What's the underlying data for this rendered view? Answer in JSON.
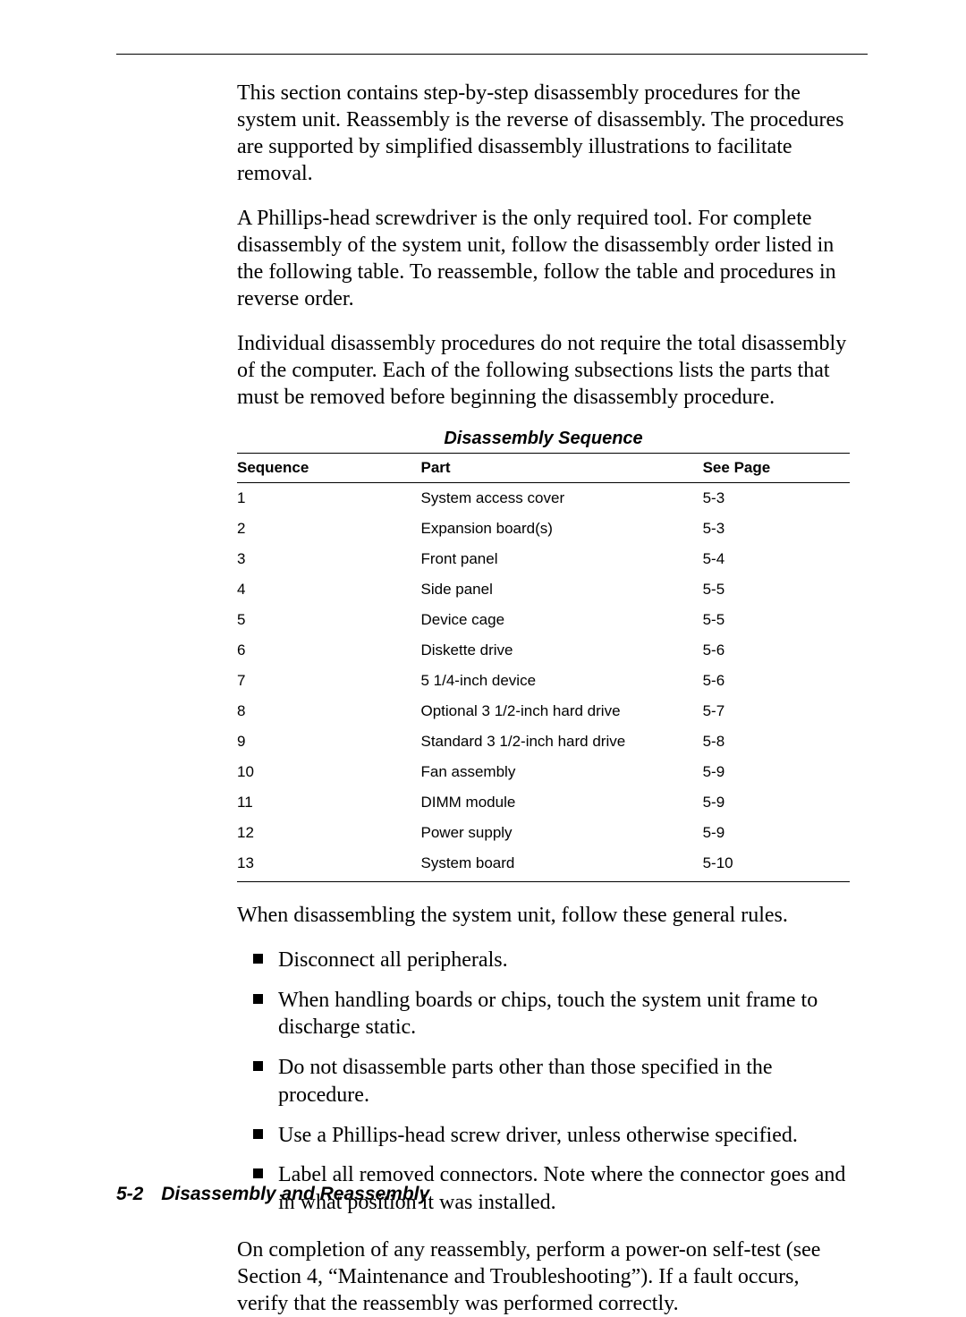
{
  "paragraphs": {
    "p1": "This section contains step-by-step disassembly procedures for the system unit. Reassembly is the reverse of disassembly. The procedures are supported by simplified disassembly illustrations to facilitate removal.",
    "p2": "A Phillips-head screwdriver is the only required tool. For complete disassembly of the system unit, follow the disassembly order listed in the following table. To reassemble, follow the table and procedures in reverse order.",
    "p3": "Individual disassembly procedures do not require the total disassembly of the computer. Each of the following subsections lists the parts that must be removed before beginning the disassembly procedure.",
    "p4": "When disassembling the system unit, follow these general rules.",
    "p5": "On completion of any reassembly, perform a power-on self-test (see Section 4, “Maintenance and Troubleshooting”). If a fault occurs, verify that the reassembly was performed correctly."
  },
  "table": {
    "title": "Disassembly Sequence",
    "headers": {
      "seq": "Sequence",
      "part": "Part",
      "page": "See Page"
    },
    "rows": [
      {
        "seq": "1",
        "part": "System access cover",
        "page": "5-3"
      },
      {
        "seq": "2",
        "part": "Expansion board(s)",
        "page": "5-3"
      },
      {
        "seq": "3",
        "part": "Front panel",
        "page": "5-4"
      },
      {
        "seq": "4",
        "part": "Side panel",
        "page": "5-5"
      },
      {
        "seq": "5",
        "part": "Device cage",
        "page": "5-5"
      },
      {
        "seq": "6",
        "part": "Diskette drive",
        "page": "5-6"
      },
      {
        "seq": "7",
        "part": "5 1/4-inch device",
        "page": "5-6"
      },
      {
        "seq": "8",
        "part": "Optional 3 1/2-inch hard drive",
        "page": "5-7"
      },
      {
        "seq": "9",
        "part": "Standard 3 1/2-inch hard drive",
        "page": "5-8"
      },
      {
        "seq": "10",
        "part": "Fan assembly",
        "page": "5-9"
      },
      {
        "seq": "11",
        "part": "DIMM module",
        "page": "5-9"
      },
      {
        "seq": "12",
        "part": "Power supply",
        "page": "5-9"
      },
      {
        "seq": "13",
        "part": "System board",
        "page": "5-10"
      }
    ]
  },
  "bullets": [
    "Disconnect all peripherals.",
    "When handling boards or chips, touch the system unit frame to discharge static.",
    "Do not disassemble parts other than those specified in the procedure.",
    "Use a Phillips-head screw driver, unless otherwise specified.",
    "Label all removed connectors. Note where the connector goes and in what position it was installed."
  ],
  "footer": {
    "page_number": "5-2",
    "section_title": "Disassembly and Reassembly"
  },
  "style": {
    "body_font_family": "Times New Roman",
    "table_font_family": "Arial",
    "body_font_size_pt": 18,
    "table_font_size_pt": 13,
    "text_color": "#000000",
    "background_color": "#ffffff",
    "rule_color": "#000000"
  }
}
